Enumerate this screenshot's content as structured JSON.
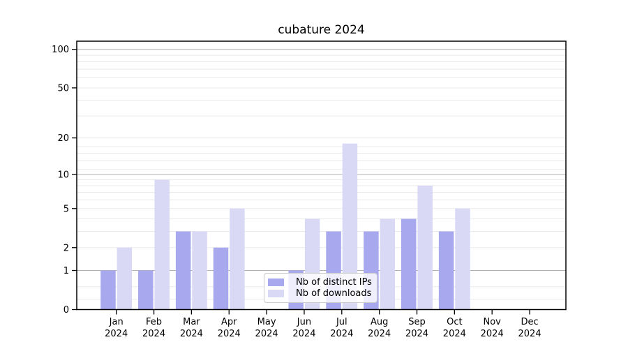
{
  "chart_data": {
    "type": "bar",
    "title": "cubature 2024",
    "categories": [
      "Jan",
      "Feb",
      "Mar",
      "Apr",
      "May",
      "Jun",
      "Jul",
      "Aug",
      "Sep",
      "Oct",
      "Nov",
      "Dec"
    ],
    "x_tick_year": "2024",
    "series": [
      {
        "name": "Nb of distinct IPs",
        "color": "#a8a8ee",
        "values": [
          1,
          1,
          3,
          2,
          0,
          1,
          3,
          3,
          4,
          3,
          0,
          0
        ]
      },
      {
        "name": "Nb of downloads",
        "color": "#d9d9f6",
        "values": [
          2,
          9,
          3,
          5,
          0,
          4,
          18,
          4,
          8,
          5,
          0,
          0
        ]
      }
    ],
    "y_axis": {
      "scale": "log1p",
      "ticks": [
        0,
        1,
        2,
        5,
        10,
        20,
        50,
        100
      ],
      "major_gridlines": [
        1,
        10,
        100
      ],
      "minor_gridlines": [
        0.2,
        0.5,
        3,
        4,
        6,
        7,
        8,
        9,
        11,
        13,
        15,
        17,
        30,
        40,
        60,
        70,
        80,
        90
      ],
      "range": [
        0,
        115
      ]
    },
    "legend": {
      "position": "bottom-center"
    },
    "grid": true
  },
  "colors": {
    "background": "#ffffff",
    "spine": "#000000",
    "major_grid": "#b0b0b0",
    "minor_grid": "#eaeaea",
    "tick_label": "#000000"
  }
}
